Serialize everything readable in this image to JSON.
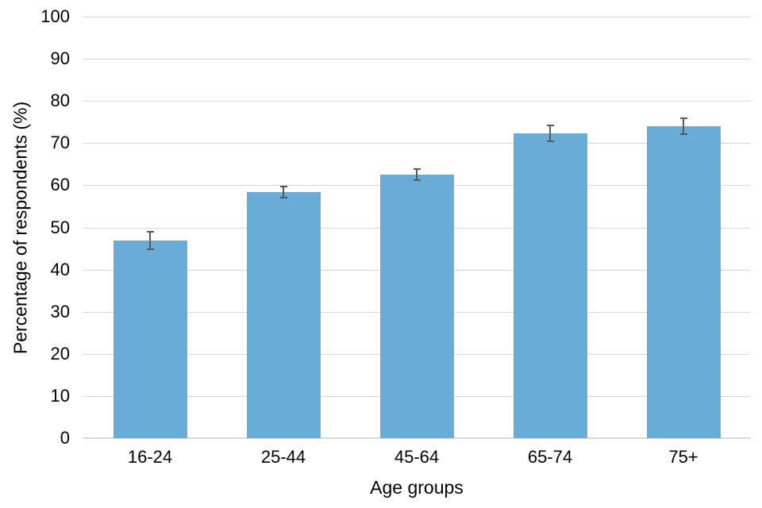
{
  "chart_data": {
    "type": "bar",
    "title": "",
    "xlabel": "Age groups",
    "ylabel": "Percentage of respondents (%)",
    "categories": [
      "16-24",
      "25-44",
      "45-64",
      "65-74",
      "75+"
    ],
    "values": [
      46.9,
      58.4,
      62.5,
      72.3,
      74.0
    ],
    "error_bars": [
      2.2,
      1.5,
      1.5,
      2.0,
      2.0
    ],
    "ylim": [
      0,
      100
    ],
    "yticks": [
      0,
      10,
      20,
      30,
      40,
      50,
      60,
      70,
      80,
      90,
      100
    ],
    "grid": "horizontal",
    "legend": "none",
    "colors": {
      "bar": "#6AACD8",
      "gridline": "#D9D9D9",
      "axis_line": "#D9D9D9",
      "error_bar": "#595959",
      "text": "#000000",
      "background": "#FFFFFF"
    }
  }
}
